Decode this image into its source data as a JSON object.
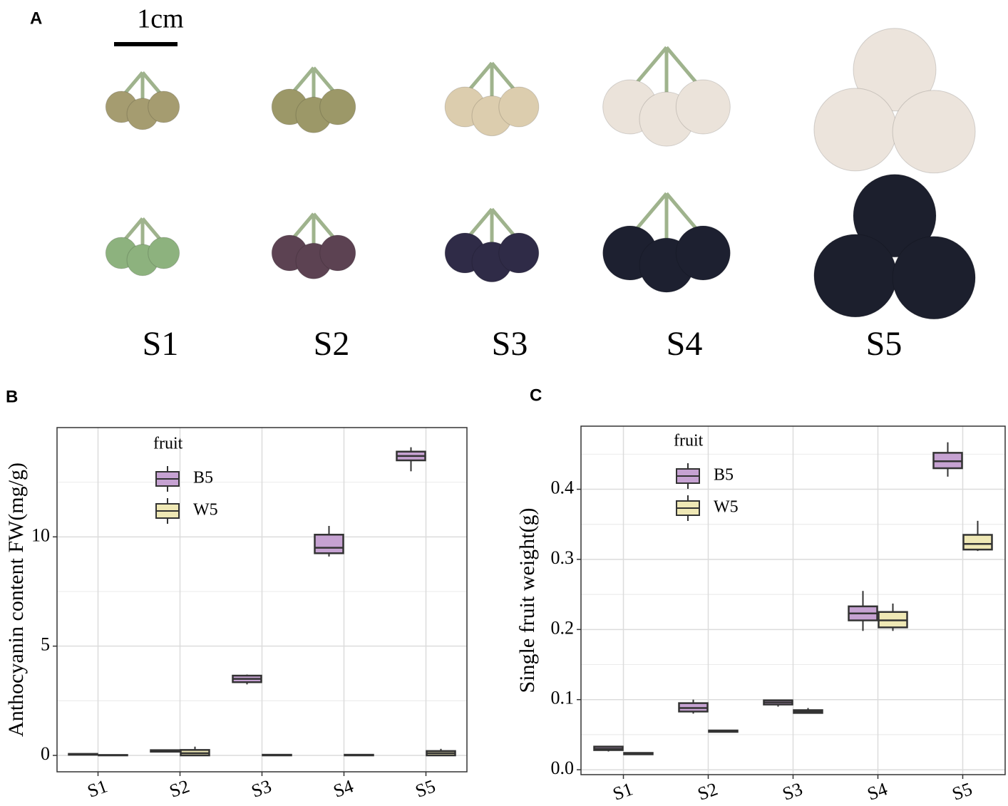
{
  "photo_panel": {
    "label": "A",
    "scale_bar": "1cm",
    "stages": [
      "S1",
      "S2",
      "S3",
      "S4",
      "S5"
    ]
  },
  "chart_data": [
    {
      "type": "box",
      "panel_label": "B",
      "ylabel": "Anthocyanin content FW(mg/g)",
      "legend_title": "fruit",
      "categories": [
        "S1",
        "S2",
        "S3",
        "S4",
        "S5"
      ],
      "ylim": [
        -0.75,
        15
      ],
      "yticks": [
        0,
        5,
        10
      ],
      "grid": true,
      "series": [
        {
          "name": "B5",
          "color": "#c6a2d2",
          "values": [
            {
              "min": 0.02,
              "q1": 0.03,
              "median": 0.05,
              "q3": 0.07,
              "max": 0.08
            },
            {
              "min": 0.15,
              "q1": 0.17,
              "median": 0.2,
              "q3": 0.24,
              "max": 0.26
            },
            {
              "min": 3.25,
              "q1": 3.35,
              "median": 3.5,
              "q3": 3.65,
              "max": 3.7
            },
            {
              "min": 9.1,
              "q1": 9.25,
              "median": 9.5,
              "q3": 10.1,
              "max": 10.5
            },
            {
              "min": 13.0,
              "q1": 13.5,
              "median": 13.7,
              "q3": 13.9,
              "max": 14.1
            }
          ]
        },
        {
          "name": "W5",
          "color": "#efe8b5",
          "values": [
            {
              "min": 0.0,
              "q1": 0.0,
              "median": 0.01,
              "q3": 0.02,
              "max": 0.03
            },
            {
              "min": 0.0,
              "q1": 0.0,
              "median": 0.1,
              "q3": 0.25,
              "max": 0.4
            },
            {
              "min": 0.0,
              "q1": 0.0,
              "median": 0.01,
              "q3": 0.03,
              "max": 0.04
            },
            {
              "min": 0.0,
              "q1": 0.0,
              "median": 0.01,
              "q3": 0.03,
              "max": 0.04
            },
            {
              "min": 0.0,
              "q1": 0.0,
              "median": 0.1,
              "q3": 0.2,
              "max": 0.3
            }
          ]
        }
      ]
    },
    {
      "type": "box",
      "panel_label": "C",
      "ylabel": "Single fruit weight(g)",
      "legend_title": "fruit",
      "categories": [
        "S1",
        "S2",
        "S3",
        "S4",
        "S5"
      ],
      "ylim": [
        -0.007,
        0.49
      ],
      "yticks": [
        {
          "value": 0,
          "label": "0.0"
        },
        0.1,
        0.2,
        0.3,
        0.4
      ],
      "grid": true,
      "series": [
        {
          "name": "B5",
          "color": "#c6a2d2",
          "values": [
            {
              "min": 0.026,
              "q1": 0.028,
              "median": 0.03,
              "q3": 0.033,
              "max": 0.034
            },
            {
              "min": 0.08,
              "q1": 0.083,
              "median": 0.088,
              "q3": 0.095,
              "max": 0.1
            },
            {
              "min": 0.09,
              "q1": 0.093,
              "median": 0.096,
              "q3": 0.099,
              "max": 0.1
            },
            {
              "min": 0.198,
              "q1": 0.213,
              "median": 0.223,
              "q3": 0.233,
              "max": 0.255
            },
            {
              "min": 0.418,
              "q1": 0.43,
              "median": 0.44,
              "q3": 0.452,
              "max": 0.467
            }
          ]
        },
        {
          "name": "W5",
          "color": "#efe8b5",
          "values": [
            {
              "min": 0.021,
              "q1": 0.022,
              "median": 0.023,
              "q3": 0.024,
              "max": 0.025
            },
            {
              "min": 0.053,
              "q1": 0.054,
              "median": 0.055,
              "q3": 0.056,
              "max": 0.057
            },
            {
              "min": 0.08,
              "q1": 0.081,
              "median": 0.083,
              "q3": 0.085,
              "max": 0.088
            },
            {
              "min": 0.198,
              "q1": 0.203,
              "median": 0.213,
              "q3": 0.225,
              "max": 0.237
            },
            {
              "min": 0.312,
              "q1": 0.314,
              "median": 0.322,
              "q3": 0.335,
              "max": 0.355
            }
          ]
        }
      ]
    }
  ]
}
